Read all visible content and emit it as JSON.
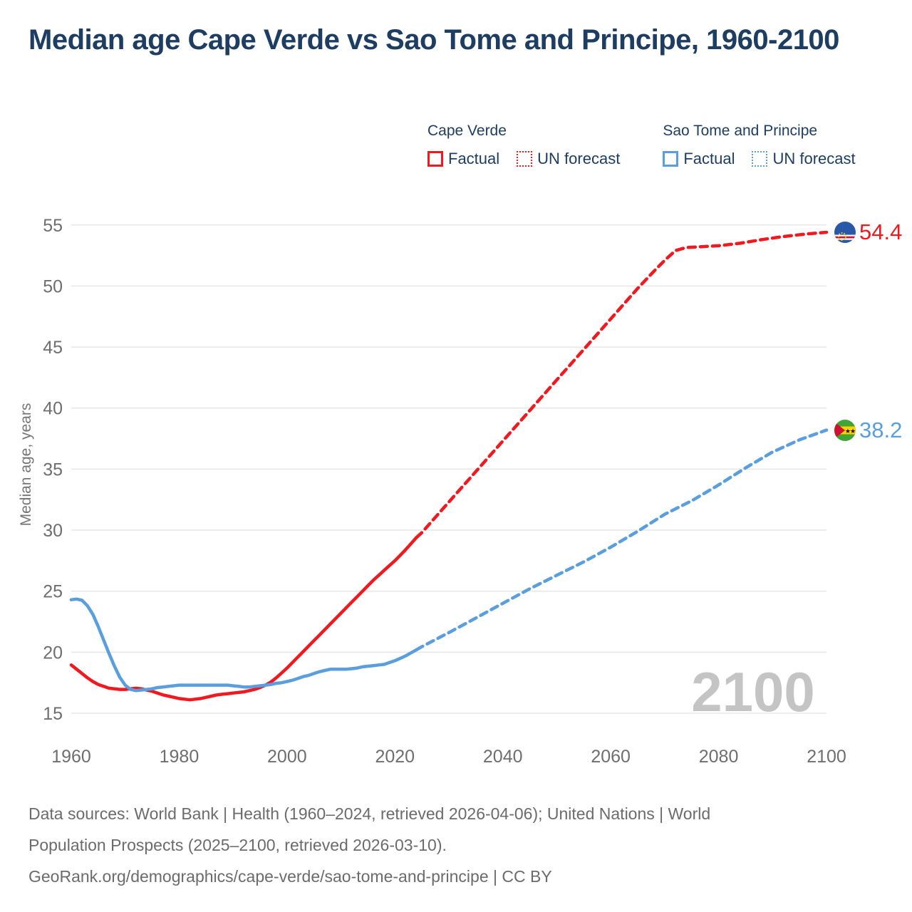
{
  "title": "Median age Cape Verde vs Sao Tome and Principe, 1960-2100",
  "legend": {
    "groups": [
      {
        "label": "Cape Verde",
        "color": "#f01920",
        "items": [
          {
            "label": "Factual",
            "line": "solid"
          },
          {
            "label": "UN forecast",
            "line": "dashed"
          }
        ]
      },
      {
        "label": "Sao Tome and Principe",
        "color": "#5a9ede",
        "items": [
          {
            "label": "Factual",
            "line": "solid"
          },
          {
            "label": "UN forecast",
            "line": "dashed"
          }
        ]
      }
    ]
  },
  "colors": {
    "cape_verde": "#f01920",
    "sao_tome": "#5a9ede",
    "title_text": "#1d3d63",
    "tick": "#6e6e6e",
    "grid": "#e7e7e7",
    "watermark": "#c4c4c4"
  },
  "chart_data": {
    "type": "line",
    "title": "Median age Cape Verde vs Sao Tome and Principe, 1960-2100",
    "xlabel": "",
    "ylabel": "Median age, years",
    "x_range": [
      1960,
      2100
    ],
    "y_range": [
      15,
      55
    ],
    "xticks": [
      1960,
      1980,
      2000,
      2020,
      2040,
      2060,
      2080,
      2100
    ],
    "yticks": [
      15,
      20,
      25,
      30,
      35,
      40,
      45,
      50,
      55
    ],
    "grid": "horizontal",
    "legend_position": "top-right",
    "watermark": "2100",
    "series": [
      {
        "name": "Cape Verde — Factual",
        "country": "Cape Verde",
        "kind": "factual",
        "style": "solid",
        "color": "#f01920",
        "points": [
          [
            1960,
            18.95
          ],
          [
            1961,
            18.6
          ],
          [
            1962,
            18.25
          ],
          [
            1963,
            17.9
          ],
          [
            1964,
            17.6
          ],
          [
            1965,
            17.35
          ],
          [
            1966,
            17.2
          ],
          [
            1967,
            17.05
          ],
          [
            1968,
            17.0
          ],
          [
            1969,
            16.95
          ],
          [
            1970,
            16.95
          ],
          [
            1971,
            17.0
          ],
          [
            1972,
            17.05
          ],
          [
            1973,
            17.0
          ],
          [
            1974,
            16.9
          ],
          [
            1975,
            16.8
          ],
          [
            1976,
            16.65
          ],
          [
            1977,
            16.5
          ],
          [
            1978,
            16.4
          ],
          [
            1979,
            16.3
          ],
          [
            1980,
            16.2
          ],
          [
            1981,
            16.15
          ],
          [
            1982,
            16.1
          ],
          [
            1983,
            16.15
          ],
          [
            1984,
            16.2
          ],
          [
            1985,
            16.3
          ],
          [
            1986,
            16.4
          ],
          [
            1987,
            16.5
          ],
          [
            1988,
            16.55
          ],
          [
            1989,
            16.6
          ],
          [
            1990,
            16.65
          ],
          [
            1991,
            16.7
          ],
          [
            1992,
            16.75
          ],
          [
            1993,
            16.85
          ],
          [
            1994,
            16.95
          ],
          [
            1995,
            17.1
          ],
          [
            1996,
            17.3
          ],
          [
            1997,
            17.55
          ],
          [
            1998,
            17.9
          ],
          [
            1999,
            18.3
          ],
          [
            2000,
            18.7
          ],
          [
            2001,
            19.15
          ],
          [
            2002,
            19.6
          ],
          [
            2003,
            20.05
          ],
          [
            2004,
            20.5
          ],
          [
            2005,
            20.95
          ],
          [
            2006,
            21.4
          ],
          [
            2007,
            21.85
          ],
          [
            2008,
            22.3
          ],
          [
            2009,
            22.75
          ],
          [
            2010,
            23.2
          ],
          [
            2011,
            23.65
          ],
          [
            2012,
            24.1
          ],
          [
            2013,
            24.55
          ],
          [
            2014,
            25.0
          ],
          [
            2015,
            25.45
          ],
          [
            2016,
            25.9
          ],
          [
            2017,
            26.3
          ],
          [
            2018,
            26.7
          ],
          [
            2019,
            27.1
          ],
          [
            2020,
            27.5
          ],
          [
            2021,
            27.95
          ],
          [
            2022,
            28.4
          ],
          [
            2023,
            28.9
          ],
          [
            2024,
            29.4
          ]
        ]
      },
      {
        "name": "Cape Verde — UN forecast",
        "country": "Cape Verde",
        "kind": "forecast",
        "style": "dashed",
        "color": "#f01920",
        "end_label": "54.4",
        "points": [
          [
            2024,
            29.4
          ],
          [
            2025,
            29.8
          ],
          [
            2030,
            32.3
          ],
          [
            2035,
            34.8
          ],
          [
            2040,
            37.3
          ],
          [
            2045,
            39.8
          ],
          [
            2050,
            42.3
          ],
          [
            2055,
            44.8
          ],
          [
            2060,
            47.3
          ],
          [
            2065,
            49.8
          ],
          [
            2068,
            51.2
          ],
          [
            2070,
            52.1
          ],
          [
            2072,
            52.9
          ],
          [
            2074,
            53.15
          ],
          [
            2076,
            53.2
          ],
          [
            2078,
            53.25
          ],
          [
            2080,
            53.3
          ],
          [
            2084,
            53.5
          ],
          [
            2088,
            53.8
          ],
          [
            2092,
            54.05
          ],
          [
            2096,
            54.25
          ],
          [
            2100,
            54.4
          ]
        ]
      },
      {
        "name": "Sao Tome and Principe — Factual",
        "country": "Sao Tome and Principe",
        "kind": "factual",
        "style": "solid",
        "color": "#5a9ede",
        "points": [
          [
            1960,
            24.3
          ],
          [
            1961,
            24.35
          ],
          [
            1962,
            24.25
          ],
          [
            1963,
            23.8
          ],
          [
            1964,
            23.1
          ],
          [
            1965,
            22.1
          ],
          [
            1966,
            21.0
          ],
          [
            1967,
            19.9
          ],
          [
            1968,
            18.85
          ],
          [
            1969,
            17.95
          ],
          [
            1970,
            17.3
          ],
          [
            1971,
            16.95
          ],
          [
            1972,
            16.85
          ],
          [
            1973,
            16.9
          ],
          [
            1974,
            16.95
          ],
          [
            1975,
            17.0
          ],
          [
            1976,
            17.1
          ],
          [
            1977,
            17.15
          ],
          [
            1978,
            17.2
          ],
          [
            1979,
            17.25
          ],
          [
            1980,
            17.3
          ],
          [
            1981,
            17.3
          ],
          [
            1982,
            17.3
          ],
          [
            1983,
            17.3
          ],
          [
            1984,
            17.3
          ],
          [
            1985,
            17.3
          ],
          [
            1986,
            17.3
          ],
          [
            1987,
            17.3
          ],
          [
            1988,
            17.3
          ],
          [
            1989,
            17.3
          ],
          [
            1990,
            17.25
          ],
          [
            1991,
            17.2
          ],
          [
            1992,
            17.15
          ],
          [
            1993,
            17.15
          ],
          [
            1994,
            17.2
          ],
          [
            1995,
            17.25
          ],
          [
            1996,
            17.3
          ],
          [
            1997,
            17.35
          ],
          [
            1998,
            17.45
          ],
          [
            1999,
            17.5
          ],
          [
            2000,
            17.6
          ],
          [
            2001,
            17.7
          ],
          [
            2002,
            17.85
          ],
          [
            2003,
            18.0
          ],
          [
            2004,
            18.1
          ],
          [
            2005,
            18.25
          ],
          [
            2006,
            18.4
          ],
          [
            2007,
            18.5
          ],
          [
            2008,
            18.6
          ],
          [
            2009,
            18.6
          ],
          [
            2010,
            18.6
          ],
          [
            2011,
            18.6
          ],
          [
            2012,
            18.65
          ],
          [
            2013,
            18.7
          ],
          [
            2014,
            18.8
          ],
          [
            2015,
            18.85
          ],
          [
            2016,
            18.9
          ],
          [
            2017,
            18.95
          ],
          [
            2018,
            19.0
          ],
          [
            2019,
            19.15
          ],
          [
            2020,
            19.3
          ],
          [
            2021,
            19.5
          ],
          [
            2022,
            19.7
          ],
          [
            2023,
            19.95
          ],
          [
            2024,
            20.2
          ]
        ]
      },
      {
        "name": "Sao Tome and Principe — UN forecast",
        "country": "Sao Tome and Principe",
        "kind": "forecast",
        "style": "dashed",
        "color": "#5a9ede",
        "end_label": "38.2",
        "points": [
          [
            2024,
            20.2
          ],
          [
            2025,
            20.45
          ],
          [
            2030,
            21.6
          ],
          [
            2035,
            22.8
          ],
          [
            2040,
            24.0
          ],
          [
            2045,
            25.2
          ],
          [
            2050,
            26.3
          ],
          [
            2055,
            27.4
          ],
          [
            2060,
            28.6
          ],
          [
            2065,
            29.9
          ],
          [
            2070,
            31.3
          ],
          [
            2075,
            32.4
          ],
          [
            2080,
            33.7
          ],
          [
            2085,
            35.1
          ],
          [
            2090,
            36.4
          ],
          [
            2095,
            37.4
          ],
          [
            2100,
            38.2
          ]
        ]
      }
    ]
  },
  "footer": {
    "line1": "Data sources: World Bank | Health (1960–2024, retrieved 2026-04-06); United Nations | World",
    "line2": "Population Prospects (2025–2100, retrieved 2026-03-10).",
    "line3": "GeoRank.org/demographics/cape-verde/sao-tome-and-principe | CC BY"
  }
}
